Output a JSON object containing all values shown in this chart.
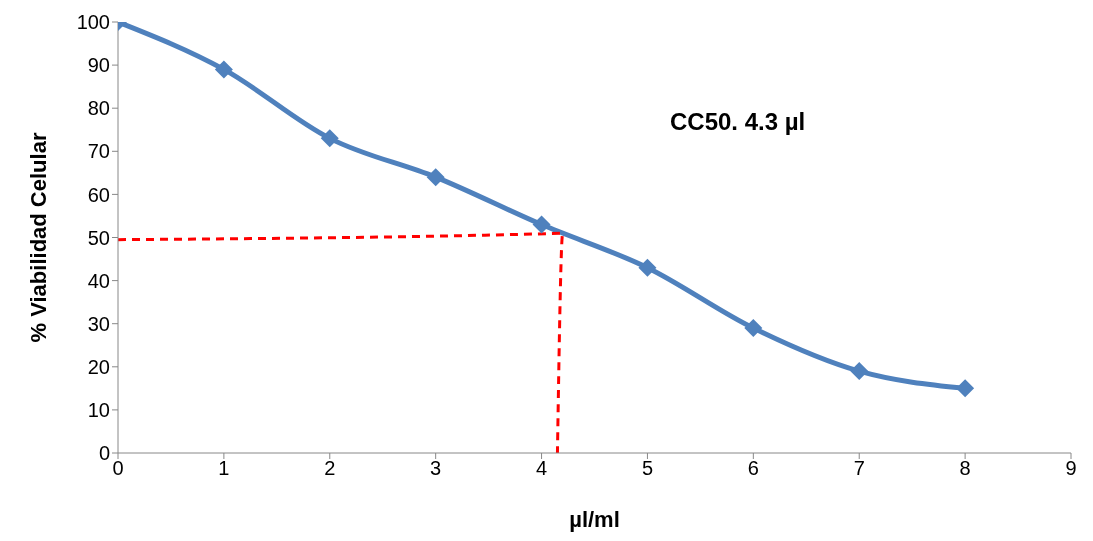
{
  "chart_data": {
    "type": "line",
    "xlabel": "µl/ml",
    "ylabel": "% Viabilidad Celular",
    "annotations": [
      "CC50. 4.3 µl"
    ],
    "xlim": [
      0,
      9
    ],
    "xticks": [
      0,
      1,
      2,
      3,
      4,
      5,
      6,
      7,
      8,
      9
    ],
    "ylim": [
      0,
      100
    ],
    "yticks": [
      0,
      10,
      20,
      30,
      40,
      50,
      60,
      70,
      80,
      90,
      100
    ],
    "grid": false,
    "series": [
      {
        "color": "#4f81bd",
        "x": [
          0,
          1,
          2,
          3,
          4,
          5,
          6,
          7,
          8
        ],
        "values": [
          100,
          89,
          73,
          64,
          53,
          43,
          29,
          19,
          15
        ],
        "marker": "diamond",
        "line_style": "solid"
      },
      {
        "color": "#ff0000",
        "x": [
          0,
          4.2,
          4.15
        ],
        "values": [
          49.5,
          51,
          0
        ],
        "marker": "none",
        "line_style": "dashed"
      }
    ]
  }
}
